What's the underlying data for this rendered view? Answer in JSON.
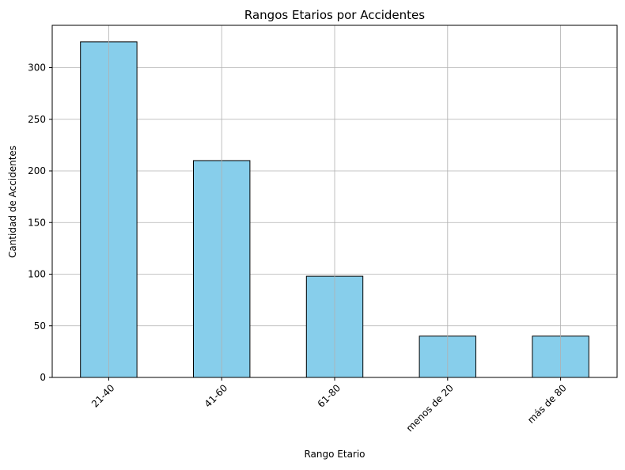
{
  "chart_data": {
    "type": "bar",
    "title": "Rangos Etarios por Accidentes",
    "xlabel": "Rango Etario",
    "ylabel": "Cantidad de Accidentes",
    "categories": [
      "21-40",
      "41-60",
      "61-80",
      "menos de 20",
      "más de 80"
    ],
    "values": [
      325,
      210,
      98,
      40,
      40
    ],
    "ylim": [
      0,
      341
    ],
    "yticks": [
      0,
      50,
      100,
      150,
      200,
      250,
      300
    ],
    "grid": true,
    "bar_color": "#87ceeb",
    "edge_color": "#000000"
  }
}
